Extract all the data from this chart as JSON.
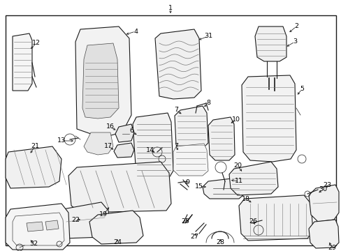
{
  "bg": "#ffffff",
  "border": "#000000",
  "ink": "#1a1a1a",
  "gray": "#444444",
  "lgray": "#777777",
  "figsize": [
    4.89,
    3.6
  ],
  "dpi": 100
}
